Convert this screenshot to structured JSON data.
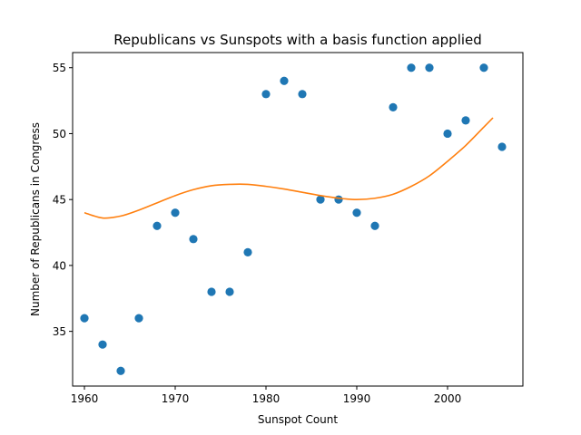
{
  "chart_data": {
    "type": "scatter",
    "title": "Republicans vs Sunspots with a basis function applied",
    "xlabel": "Sunspot Count",
    "ylabel": "Number of Republicans in Congress",
    "xlim": [
      1958.7,
      2008.3
    ],
    "ylim": [
      30.85,
      56.15
    ],
    "x_ticks": [
      1960,
      1970,
      1980,
      1990,
      2000
    ],
    "y_ticks": [
      35,
      40,
      45,
      50,
      55
    ],
    "grid": false,
    "colors": {
      "points": "#1f77b4",
      "curve": "#ff7f0e"
    },
    "series": [
      {
        "type": "scatter",
        "x": [
          1960,
          1962,
          1964,
          1966,
          1968,
          1970,
          1972,
          1974,
          1976,
          1978,
          1980,
          1982,
          1984,
          1986,
          1988,
          1990,
          1992,
          1994,
          1996,
          1998,
          2000,
          2002,
          2004,
          2006
        ],
        "y": [
          36,
          34,
          32,
          36,
          43,
          44,
          42,
          38,
          38,
          41,
          53,
          54,
          53,
          45,
          45,
          44,
          43,
          52,
          55,
          55,
          50,
          51,
          55,
          49
        ]
      },
      {
        "type": "line",
        "x": [
          1960,
          1962,
          1964,
          1966,
          1968,
          1970,
          1972,
          1974,
          1976,
          1978,
          1980,
          1982,
          1984,
          1986,
          1988,
          1990,
          1992,
          1994,
          1996,
          1998,
          2000,
          2002,
          2004,
          2005
        ],
        "y": [
          44.0,
          43.6,
          43.75,
          44.2,
          44.75,
          45.3,
          45.75,
          46.05,
          46.15,
          46.15,
          46.0,
          45.8,
          45.55,
          45.3,
          45.1,
          45.0,
          45.1,
          45.4,
          46.0,
          46.8,
          47.9,
          49.1,
          50.5,
          51.2
        ]
      }
    ]
  }
}
